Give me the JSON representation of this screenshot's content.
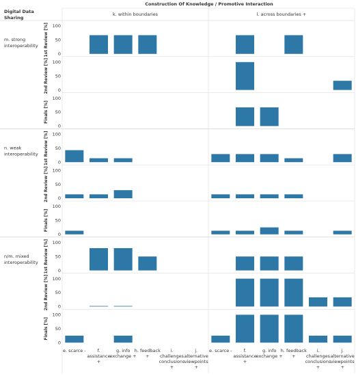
{
  "chart_data": {
    "type": "bar",
    "title": "Construction Of Knowledge  / Promotive Interaction",
    "row_header": "Digital Data Sharing",
    "columns": [
      "k. within boundaries",
      "l. across boundaries +"
    ],
    "row_groups": [
      {
        "label": "m. strong interoperability",
        "label_lines": [
          "m. strong",
          "interoperability"
        ]
      },
      {
        "label": "n. weak interoperability",
        "label_lines": [
          "n. weak",
          "interoperability"
        ]
      },
      {
        "label": "n/m. mixed interoperability",
        "label_lines": [
          "n/m. mixed",
          "interoperability"
        ]
      }
    ],
    "measures": [
      "1st Review [%]",
      "2nd Review [%]",
      "Finals [%]"
    ],
    "categories": [
      {
        "label": "e. scarce -",
        "lines": [
          "e. scarce -"
        ]
      },
      {
        "label": "f. assistance +",
        "lines": [
          "f.",
          "assistance",
          "+"
        ]
      },
      {
        "label": "g. info exchange +",
        "lines": [
          "g. info",
          "exchange +"
        ]
      },
      {
        "label": "h. feedback +",
        "lines": [
          "h. feedback",
          "+"
        ]
      },
      {
        "label": "i. challenges conclusions +",
        "lines": [
          "i.",
          "challenges",
          "conclusions",
          "+"
        ]
      },
      {
        "label": "j. alternative viewpoints +",
        "lines": [
          "j.",
          "alternative",
          "viewpoints",
          "+"
        ]
      }
    ],
    "y_ticks": [
      0,
      50,
      100
    ],
    "ylim": [
      0,
      100
    ],
    "bar_color": "#2e78a8",
    "values": [
      [
        [
          [
            0,
            67,
            67,
            67,
            0,
            0
          ],
          [
            0,
            67,
            0,
            67,
            0,
            0
          ]
        ],
        [
          [
            0,
            0,
            0,
            0,
            0,
            0
          ],
          [
            0,
            100,
            0,
            0,
            0,
            33
          ]
        ],
        [
          [
            0,
            0,
            0,
            0,
            0,
            0
          ],
          [
            0,
            67,
            67,
            0,
            0,
            0
          ]
        ]
      ],
      [
        [
          [
            43,
            14,
            14,
            0,
            0,
            0
          ],
          [
            29,
            29,
            29,
            14,
            0,
            29
          ]
        ],
        [
          [
            14,
            14,
            29,
            0,
            0,
            0
          ],
          [
            14,
            14,
            14,
            14,
            0,
            0
          ]
        ],
        [
          [
            13,
            0,
            0,
            0,
            0,
            0
          ],
          [
            13,
            13,
            25,
            13,
            0,
            13
          ]
        ]
      ],
      [
        [
          [
            0,
            80,
            80,
            50,
            0,
            0
          ],
          [
            0,
            50,
            50,
            50,
            0,
            0
          ]
        ],
        [
          [
            0,
            2,
            2,
            0,
            0,
            0
          ],
          [
            0,
            100,
            100,
            100,
            33,
            33
          ]
        ],
        [
          [
            25,
            0,
            25,
            0,
            0,
            0
          ],
          [
            25,
            100,
            100,
            100,
            25,
            25
          ]
        ]
      ]
    ]
  }
}
